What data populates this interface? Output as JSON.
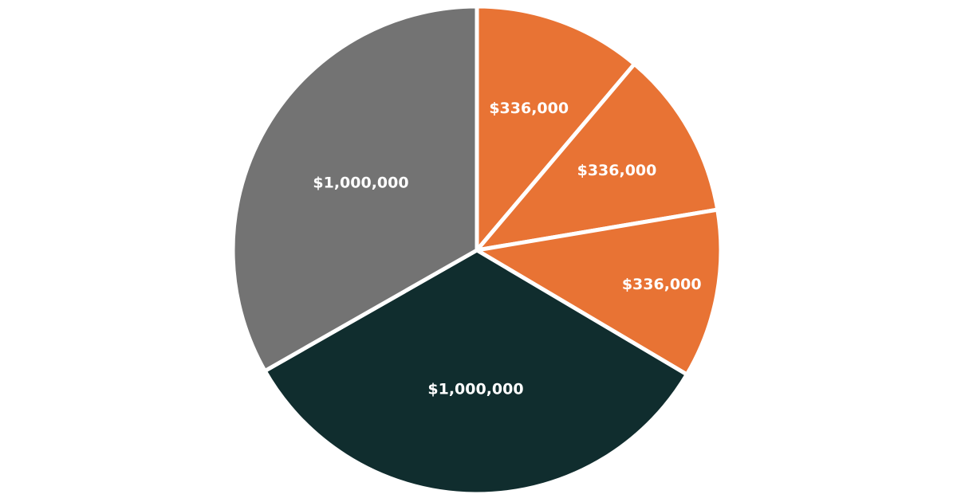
{
  "chart_data": {
    "type": "pie",
    "start_angle_deg": 0,
    "direction": "clockwise",
    "slices": [
      {
        "value": 336000,
        "label": "$336,000",
        "color": "#e87334"
      },
      {
        "value": 336000,
        "label": "$336,000",
        "color": "#e87334"
      },
      {
        "value": 336000,
        "label": "$336,000",
        "color": "#e87334"
      },
      {
        "value": 1000000,
        "label": "$1,000,000",
        "color": "#102d2e"
      },
      {
        "value": 1000000,
        "label": "$1,000,000",
        "color": "#737373"
      }
    ],
    "legend": "none"
  }
}
